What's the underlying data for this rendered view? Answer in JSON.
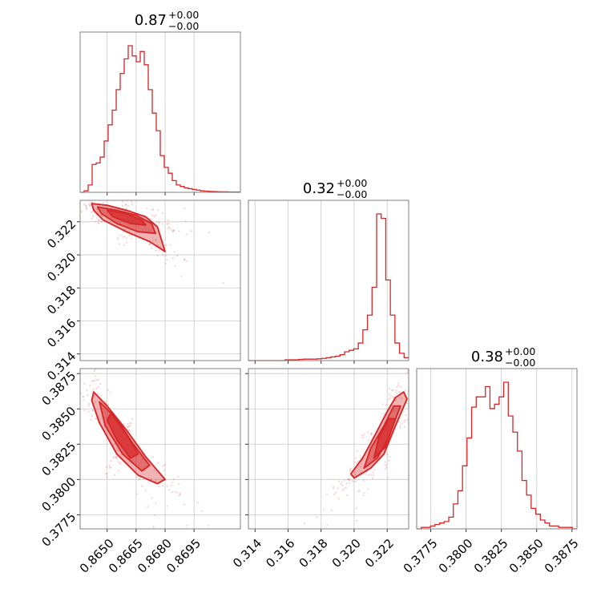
{
  "colors": {
    "series": "#d62728",
    "grid": "#c8c8c8",
    "frame": "#808080"
  },
  "chart_data": {
    "type": "corner",
    "parameters": [
      {
        "title_value": "0.87",
        "title_plus": "+0.00",
        "title_minus": "−0.00",
        "range": [
          0.8636,
          0.8719
        ],
        "ticks": [
          0.865,
          0.8665,
          0.868,
          0.8695
        ],
        "tick_labels": [
          "0.8650",
          "0.8665",
          "0.8680",
          "0.8695"
        ]
      },
      {
        "title_value": "0.32",
        "title_plus": "+0.00",
        "title_minus": "−0.00",
        "range": [
          0.3136,
          0.3233
        ],
        "ticks": [
          0.314,
          0.316,
          0.318,
          0.32,
          0.322
        ],
        "tick_labels": [
          "0.314",
          "0.316",
          "0.318",
          "0.320",
          "0.322"
        ]
      },
      {
        "title_value": "0.38",
        "title_plus": "+0.00",
        "title_minus": "−0.00",
        "range": [
          0.3765,
          0.38785
        ],
        "ticks": [
          0.3775,
          0.38,
          0.3825,
          0.385,
          0.3875
        ],
        "tick_labels": [
          "0.3775",
          "0.3800",
          "0.3825",
          "0.3850",
          "0.3875"
        ]
      }
    ],
    "histograms": [
      {
        "param": 0,
        "relative_heights": [
          0.0,
          0.01,
          0.05,
          0.19,
          0.2,
          0.24,
          0.35,
          0.46,
          0.56,
          0.7,
          0.81,
          0.91,
          1.0,
          0.93,
          0.89,
          0.96,
          0.87,
          0.7,
          0.54,
          0.42,
          0.25,
          0.17,
          0.13,
          0.08,
          0.05,
          0.04,
          0.03,
          0.025,
          0.02,
          0.015,
          0.01,
          0.008,
          0.006,
          0.005,
          0.004,
          0.003,
          0.003,
          0.002,
          0.002,
          0.002
        ]
      },
      {
        "param": 1,
        "relative_heights": [
          0.0,
          0.0,
          0.0,
          0.0,
          0.0,
          0.0,
          0.0,
          0.0,
          0.005,
          0.005,
          0.005,
          0.008,
          0.01,
          0.01,
          0.01,
          0.012,
          0.015,
          0.02,
          0.025,
          0.03,
          0.04,
          0.06,
          0.07,
          0.08,
          0.12,
          0.21,
          0.31,
          0.5,
          1.0,
          0.97,
          0.55,
          0.31,
          0.12,
          0.05,
          0.02
        ]
      },
      {
        "param": 2,
        "relative_heights": [
          0.0,
          0.01,
          0.01,
          0.02,
          0.03,
          0.04,
          0.05,
          0.08,
          0.17,
          0.26,
          0.43,
          0.62,
          0.83,
          0.9,
          0.9,
          0.97,
          0.82,
          0.85,
          0.9,
          1.0,
          0.77,
          0.66,
          0.53,
          0.33,
          0.23,
          0.14,
          0.1,
          0.06,
          0.04,
          0.02,
          0.02,
          0.01,
          0.01,
          0.01,
          0.0
        ]
      }
    ],
    "joint_panels": [
      {
        "x_param": 0,
        "y_param": 1,
        "contour_levels": [
          [
            [
              0.8642,
              0.3231
            ],
            [
              0.865,
              0.323
            ],
            [
              0.866,
              0.3227
            ],
            [
              0.867,
              0.3223
            ],
            [
              0.8676,
              0.3217
            ],
            [
              0.868,
              0.3202
            ],
            [
              0.8672,
              0.3208
            ],
            [
              0.866,
              0.3214
            ],
            [
              0.8648,
              0.3221
            ],
            [
              0.8643,
              0.3227
            ]
          ],
          [
            [
              0.8645,
              0.3229
            ],
            [
              0.8655,
              0.3227
            ],
            [
              0.8665,
              0.3224
            ],
            [
              0.8673,
              0.3219
            ],
            [
              0.8675,
              0.3213
            ],
            [
              0.8666,
              0.3214
            ],
            [
              0.8655,
              0.3219
            ],
            [
              0.8647,
              0.3225
            ]
          ],
          [
            [
              0.865,
              0.3227
            ],
            [
              0.866,
              0.3225
            ],
            [
              0.8668,
              0.3221
            ],
            [
              0.867,
              0.3218
            ],
            [
              0.8662,
              0.3219
            ],
            [
              0.8653,
              0.3223
            ]
          ]
        ]
      },
      {
        "x_param": 0,
        "y_param": 2,
        "contour_levels": [
          [
            [
              0.8643,
              0.3862
            ],
            [
              0.865,
              0.3852
            ],
            [
              0.866,
              0.3835
            ],
            [
              0.867,
              0.3816
            ],
            [
              0.868,
              0.38
            ],
            [
              0.8676,
              0.3797
            ],
            [
              0.8666,
              0.3803
            ],
            [
              0.8655,
              0.3818
            ],
            [
              0.8646,
              0.384
            ],
            [
              0.8642,
              0.3856
            ]
          ],
          [
            [
              0.8646,
              0.3855
            ],
            [
              0.8655,
              0.3843
            ],
            [
              0.8663,
              0.3826
            ],
            [
              0.8672,
              0.381
            ],
            [
              0.8668,
              0.3806
            ],
            [
              0.8658,
              0.3818
            ],
            [
              0.8649,
              0.3838
            ]
          ],
          [
            [
              0.8652,
              0.3847
            ],
            [
              0.866,
              0.3832
            ],
            [
              0.8666,
              0.3818
            ],
            [
              0.8662,
              0.3815
            ],
            [
              0.8655,
              0.3828
            ],
            [
              0.865,
              0.3842
            ]
          ]
        ]
      },
      {
        "x_param": 1,
        "y_param": 2,
        "contour_levels": [
          [
            [
              0.32,
              0.3801
            ],
            [
              0.321,
              0.3808
            ],
            [
              0.3218,
              0.3818
            ],
            [
              0.3225,
              0.3838
            ],
            [
              0.3232,
              0.3857
            ],
            [
              0.323,
              0.3862
            ],
            [
              0.3225,
              0.3858
            ],
            [
              0.322,
              0.3848
            ],
            [
              0.3212,
              0.383
            ],
            [
              0.3205,
              0.3815
            ],
            [
              0.3198,
              0.3804
            ]
          ],
          [
            [
              0.3206,
              0.3808
            ],
            [
              0.3214,
              0.3815
            ],
            [
              0.3221,
              0.383
            ],
            [
              0.3228,
              0.3852
            ],
            [
              0.3224,
              0.3852
            ],
            [
              0.3218,
              0.3838
            ],
            [
              0.321,
              0.3822
            ]
          ],
          [
            [
              0.3212,
              0.3815
            ],
            [
              0.3219,
              0.3823
            ],
            [
              0.3225,
              0.3843
            ],
            [
              0.3221,
              0.3843
            ],
            [
              0.3215,
              0.383
            ]
          ]
        ]
      }
    ]
  }
}
